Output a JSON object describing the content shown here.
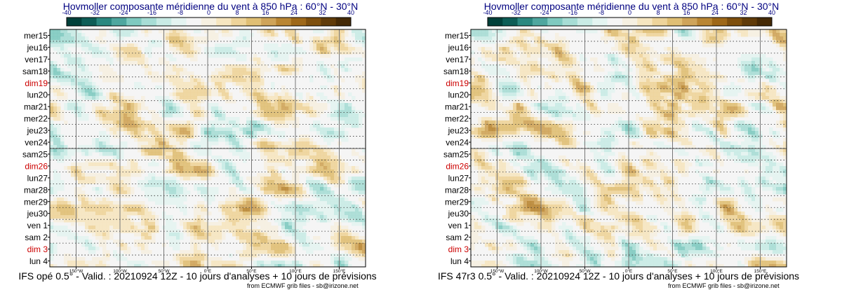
{
  "chart_data": [
    {
      "type": "heatmap",
      "title": "Hovmoller composante méridienne du vent à 850 hPa : 60°N - 30°N",
      "caption": "IFS opé 0.5° - Valid. : 20210924 12Z - 10 jours d'analyses + 10 jours de prévisions",
      "credit": "from ECMWF grib files - sb@irizone.net",
      "colorbar": {
        "ticks": [
          "-40",
          "-32",
          "-24",
          "-16",
          "-8",
          "0",
          "8",
          "16",
          "24",
          "32",
          "40"
        ],
        "colors": [
          "#01403a",
          "#0d5d56",
          "#2a8880",
          "#4fa79f",
          "#7fcac0",
          "#a7ddd5",
          "#c9ebe5",
          "#e4f4f1",
          "#f5f5f5",
          "#f6f0e1",
          "#f6e6c0",
          "#eed49a",
          "#e0bf74",
          "#cfa459",
          "#b98633",
          "#9e6818",
          "#7e4f0c",
          "#603b09",
          "#452a06"
        ]
      },
      "y_labels": [
        {
          "text": "mer15",
          "color": "#000000"
        },
        {
          "text": "jeu16",
          "color": "#000000"
        },
        {
          "text": "ven17",
          "color": "#000000"
        },
        {
          "text": "sam18",
          "color": "#000000"
        },
        {
          "text": "dim19",
          "color": "#cc0000"
        },
        {
          "text": "lun20",
          "color": "#000000"
        },
        {
          "text": "mar21",
          "color": "#000000"
        },
        {
          "text": "mer22",
          "color": "#000000"
        },
        {
          "text": "jeu23",
          "color": "#000000"
        },
        {
          "text": "ven24",
          "color": "#000000"
        },
        {
          "text": "sam25",
          "color": "#000000"
        },
        {
          "text": "dim26",
          "color": "#cc0000"
        },
        {
          "text": "lun27",
          "color": "#000000"
        },
        {
          "text": "mar28",
          "color": "#000000"
        },
        {
          "text": "mer29",
          "color": "#000000"
        },
        {
          "text": "jeu30",
          "color": "#000000"
        },
        {
          "text": "ven 1",
          "color": "#000000"
        },
        {
          "text": "sam 2",
          "color": "#000000"
        },
        {
          "text": "dim 3",
          "color": "#cc0000"
        },
        {
          "text": "lun 4",
          "color": "#000000"
        }
      ],
      "x_ticks": [
        "150°W",
        "100°W",
        "50°W",
        "0°E",
        "50°E",
        "100°E",
        "150°E"
      ],
      "x_tick_lons": [
        -150,
        -100,
        -50,
        0,
        50,
        100,
        150
      ],
      "x_range": [
        -180,
        180
      ],
      "analysis_forecast_split": "sam25"
    },
    {
      "type": "heatmap",
      "title": "Hovmoller composante méridienne du vent à 850 hPa : 60°N - 30°N",
      "caption": "IFS 47r3 0.5° - Valid. : 20210924 12Z - 10 jours d'analyses + 10 jours de prévisions",
      "credit": "from ECMWF grib files - sb@irizone.net",
      "colorbar": {
        "ticks": [
          "-40",
          "-32",
          "-24",
          "-16",
          "-8",
          "0",
          "8",
          "16",
          "24",
          "32",
          "40"
        ],
        "colors": [
          "#01403a",
          "#0d5d56",
          "#2a8880",
          "#4fa79f",
          "#7fcac0",
          "#a7ddd5",
          "#c9ebe5",
          "#e4f4f1",
          "#f5f5f5",
          "#f6f0e1",
          "#f6e6c0",
          "#eed49a",
          "#e0bf74",
          "#cfa459",
          "#b98633",
          "#9e6818",
          "#7e4f0c",
          "#603b09",
          "#452a06"
        ]
      },
      "y_labels": [
        {
          "text": "mer15",
          "color": "#000000"
        },
        {
          "text": "jeu16",
          "color": "#000000"
        },
        {
          "text": "ven17",
          "color": "#000000"
        },
        {
          "text": "sam18",
          "color": "#000000"
        },
        {
          "text": "dim19",
          "color": "#cc0000"
        },
        {
          "text": "lun20",
          "color": "#000000"
        },
        {
          "text": "mar21",
          "color": "#000000"
        },
        {
          "text": "mer22",
          "color": "#000000"
        },
        {
          "text": "jeu23",
          "color": "#000000"
        },
        {
          "text": "ven24",
          "color": "#000000"
        },
        {
          "text": "sam25",
          "color": "#000000"
        },
        {
          "text": "dim26",
          "color": "#cc0000"
        },
        {
          "text": "lun27",
          "color": "#000000"
        },
        {
          "text": "mar28",
          "color": "#000000"
        },
        {
          "text": "mer29",
          "color": "#000000"
        },
        {
          "text": "jeu30",
          "color": "#000000"
        },
        {
          "text": "ven 1",
          "color": "#000000"
        },
        {
          "text": "sam 2",
          "color": "#000000"
        },
        {
          "text": "dim 3",
          "color": "#cc0000"
        },
        {
          "text": "lun 4",
          "color": "#000000"
        }
      ],
      "x_ticks": [
        "150°W",
        "100°W",
        "50°W",
        "0°E",
        "50°E",
        "100°E",
        "150°E"
      ],
      "x_tick_lons": [
        -150,
        -100,
        -50,
        0,
        50,
        100,
        150
      ],
      "x_range": [
        -180,
        180
      ],
      "analysis_forecast_split": "sam25"
    }
  ]
}
